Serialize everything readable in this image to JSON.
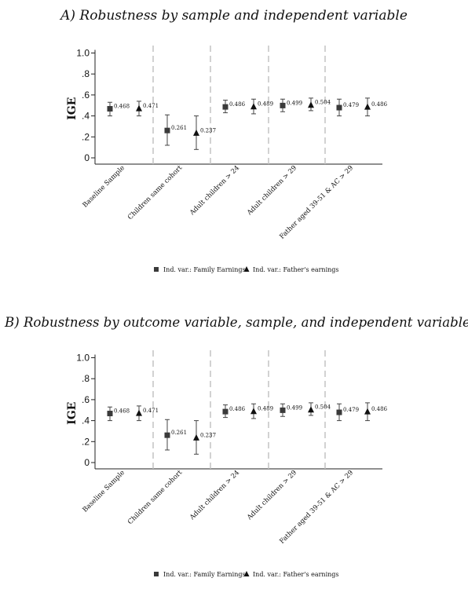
{
  "chart_data": [
    {
      "type": "scatter",
      "title": "A) Robustness by sample and independent variable",
      "ylabel": "IGE",
      "ylim": [
        0,
        1.0
      ],
      "yticks": [
        "0",
        ".2",
        ".4",
        ".6",
        ".8",
        "1.0"
      ],
      "categories": [
        "Baseline Sample",
        "Children same cohort",
        "Adult children > 24",
        "Adult children > 29",
        "Father aged 39-51 & AC > 29"
      ],
      "series": [
        {
          "name": "Ind. var.: Family Earnings",
          "marker": "square",
          "values": [
            0.468,
            0.261,
            0.486,
            0.499,
            0.479
          ],
          "labels": [
            "0.468",
            "0.261",
            "0.486",
            "0.499",
            "0.479"
          ],
          "ci_low": [
            0.4,
            0.12,
            0.43,
            0.44,
            0.4
          ],
          "ci_high": [
            0.53,
            0.41,
            0.55,
            0.56,
            0.56
          ]
        },
        {
          "name": "Ind. var.: Father's earnings",
          "marker": "triangle",
          "values": [
            0.471,
            0.237,
            0.489,
            0.504,
            0.486
          ],
          "labels": [
            "0.471",
            "0.237",
            "0.489",
            "0.504",
            "0.486"
          ],
          "ci_low": [
            0.4,
            0.08,
            0.42,
            0.45,
            0.4
          ],
          "ci_high": [
            0.54,
            0.4,
            0.56,
            0.57,
            0.57
          ]
        }
      ],
      "legend": "bottom",
      "grid": false
    },
    {
      "type": "scatter",
      "title": "B) Robustness by outcome variable, sample, and independent variable",
      "ylabel": "IGE",
      "ylim": [
        0,
        1.0
      ],
      "yticks": [
        "0",
        ".2",
        ".4",
        ".6",
        ".8",
        "1.0"
      ],
      "categories": [
        "Baseline Sample",
        "Children same cohort",
        "Adult children > 24",
        "Adult children > 29",
        "Father aged 39-51 & AC > 29"
      ],
      "series": [
        {
          "name": "Ind. var.: Family Earnings",
          "marker": "square",
          "values": [
            0.468,
            0.261,
            0.486,
            0.499,
            0.479
          ],
          "labels": [
            "0.468",
            "0.261",
            "0.486",
            "0.499",
            "0.479"
          ],
          "ci_low": [
            0.4,
            0.12,
            0.43,
            0.44,
            0.4
          ],
          "ci_high": [
            0.53,
            0.41,
            0.55,
            0.56,
            0.56
          ]
        },
        {
          "name": "Ind. var.: Father's earnings",
          "marker": "triangle",
          "values": [
            0.471,
            0.237,
            0.489,
            0.504,
            0.486
          ],
          "labels": [
            "0.471",
            "0.237",
            "0.489",
            "0.504",
            "0.486"
          ],
          "ci_low": [
            0.4,
            0.08,
            0.42,
            0.45,
            0.4
          ],
          "ci_high": [
            0.54,
            0.4,
            0.56,
            0.57,
            0.57
          ]
        }
      ],
      "legend": "bottom",
      "grid": false
    }
  ]
}
